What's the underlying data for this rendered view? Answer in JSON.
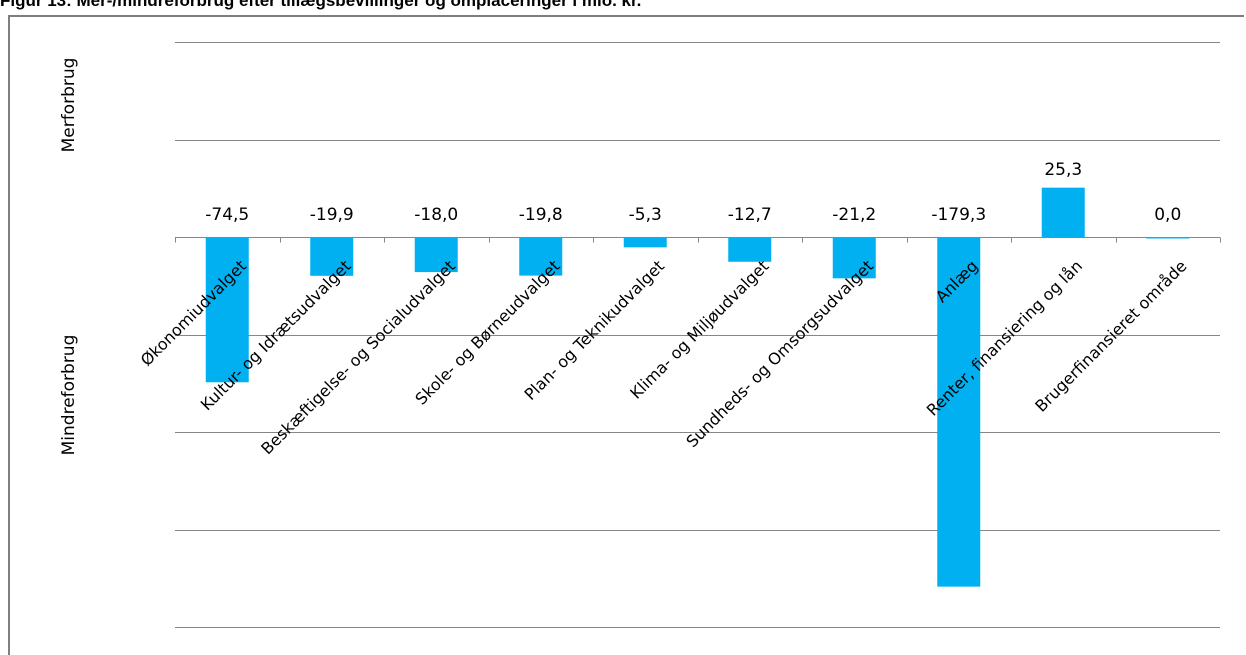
{
  "title": "Figur 13: Mer-/mindreforbrug efter tillægsbevillinger og omplaceringer i mio. kr.",
  "chart_data": {
    "type": "bar",
    "categories": [
      "Økonomiudvalget",
      "Kultur- og Idrætsudvalget",
      "Beskæftigelse- og Socialudvalget",
      "Skole- og Børneudvalget",
      "Plan- og Teknikudvalget",
      "Klima- og Miljøudvalget",
      "Sundheds- og Omsorgsudvalget",
      "Anlæg",
      "Renter, finansiering og lån",
      "Brugerfinansieret område"
    ],
    "values": [
      -74.5,
      -19.9,
      -18.0,
      -19.8,
      -5.3,
      -12.7,
      -21.2,
      -179.3,
      25.3,
      0.0
    ],
    "data_labels": [
      "-74,5",
      "-19,9",
      "-18,0",
      "-19,8",
      "-5,3",
      "-12,7",
      "-21,2",
      "-179,3",
      "25,3",
      "0,0"
    ],
    "y_labels": {
      "positive": "Merforbrug",
      "negative": "Mindreforbrug"
    },
    "ylim": [
      -200,
      100
    ],
    "gridline_step": 50,
    "grid": true,
    "bar_color": "#00b0f0"
  }
}
